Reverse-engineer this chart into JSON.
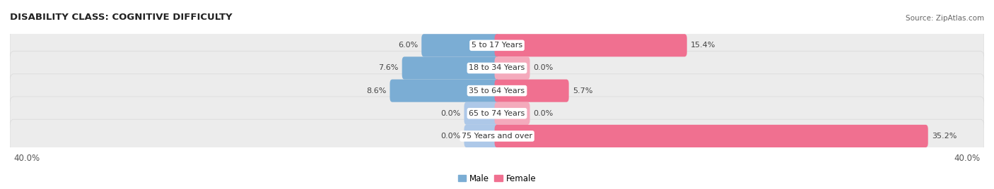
{
  "title": "DISABILITY CLASS: COGNITIVE DIFFICULTY",
  "source": "Source: ZipAtlas.com",
  "categories": [
    "5 to 17 Years",
    "18 to 34 Years",
    "35 to 64 Years",
    "65 to 74 Years",
    "75 Years and over"
  ],
  "male_values": [
    6.0,
    7.6,
    8.6,
    0.0,
    0.0
  ],
  "female_values": [
    15.4,
    0.0,
    5.7,
    0.0,
    35.2
  ],
  "male_color": "#7badd4",
  "female_color": "#f07090",
  "male_color_zero": "#adc8e8",
  "female_color_zero": "#f4aabc",
  "row_bg_color": "#ececec",
  "row_border_color": "#d8d8d8",
  "axis_limit": 40.0,
  "title_fontsize": 9.5,
  "label_fontsize": 8.0,
  "value_fontsize": 8.0,
  "tick_fontsize": 8.5,
  "min_bar_width": 2.5
}
